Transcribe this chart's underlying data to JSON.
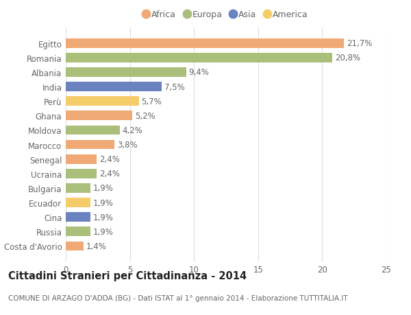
{
  "countries": [
    "Egitto",
    "Romania",
    "Albania",
    "India",
    "Perù",
    "Ghana",
    "Moldova",
    "Marocco",
    "Senegal",
    "Ucraina",
    "Bulgaria",
    "Ecuador",
    "Cina",
    "Russia",
    "Costa d'Avorio"
  ],
  "values": [
    21.7,
    20.8,
    9.4,
    7.5,
    5.7,
    5.2,
    4.2,
    3.8,
    2.4,
    2.4,
    1.9,
    1.9,
    1.9,
    1.9,
    1.4
  ],
  "continents": [
    "Africa",
    "Europa",
    "Europa",
    "Asia",
    "America",
    "Africa",
    "Europa",
    "Africa",
    "Africa",
    "Europa",
    "Europa",
    "America",
    "Asia",
    "Europa",
    "Africa"
  ],
  "continent_colors": {
    "Africa": "#F0A875",
    "Europa": "#AABF7A",
    "Asia": "#6B82C0",
    "America": "#F5CC6A"
  },
  "legend_order": [
    "Africa",
    "Europa",
    "Asia",
    "America"
  ],
  "title": "Cittadini Stranieri per Cittadinanza - 2014",
  "subtitle": "COMUNE DI ARZAGO D'ADDA (BG) - Dati ISTAT al 1° gennaio 2014 - Elaborazione TUTTITALIA.IT",
  "xlim": [
    0,
    25
  ],
  "xticks": [
    0,
    5,
    10,
    15,
    20,
    25
  ],
  "background_color": "#ffffff",
  "grid_color": "#dddddd",
  "bar_height": 0.65,
  "label_fontsize": 8.5,
  "title_fontsize": 10.5,
  "subtitle_fontsize": 7.5,
  "tick_fontsize": 8.5,
  "legend_fontsize": 9,
  "text_color": "#666666",
  "title_color": "#222222"
}
